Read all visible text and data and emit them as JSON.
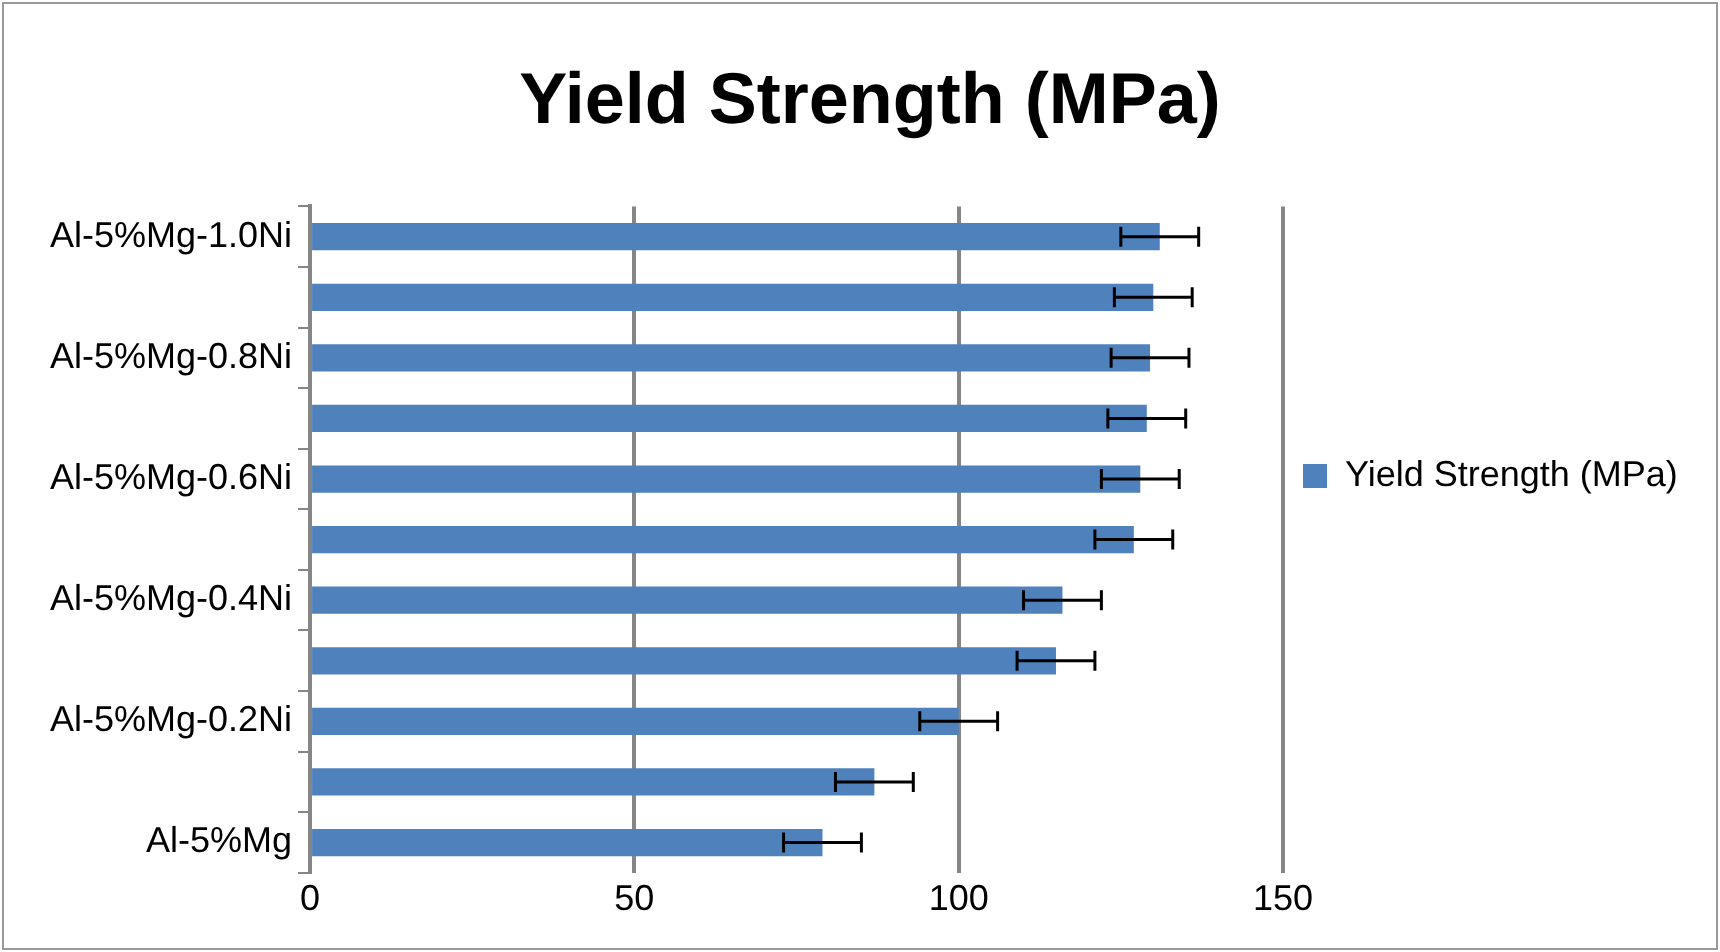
{
  "chart_data": {
    "type": "bar",
    "orientation": "horizontal",
    "title": "Yield Strength (MPa)",
    "categories": [
      "Al-5%Mg-1.0Ni",
      null,
      "Al-5%Mg-0.8Ni",
      null,
      "Al-5%Mg-0.6Ni",
      null,
      "Al-5%Mg-0.4Ni",
      null,
      "Al-5%Mg-0.2Ni",
      null,
      "Al-5%Mg"
    ],
    "series": [
      {
        "name": "Yield Strength (MPa)",
        "color": "#4f81bd",
        "values": [
          131,
          130,
          129.5,
          129,
          128,
          127,
          116,
          115,
          100,
          87,
          79
        ],
        "errors": [
          6,
          6,
          6,
          6,
          6,
          6,
          6,
          6,
          6,
          6,
          6
        ]
      }
    ],
    "xlim": [
      0,
      150
    ],
    "xticks": [
      0,
      50,
      100,
      150
    ],
    "grid": "x",
    "legend": "right"
  }
}
